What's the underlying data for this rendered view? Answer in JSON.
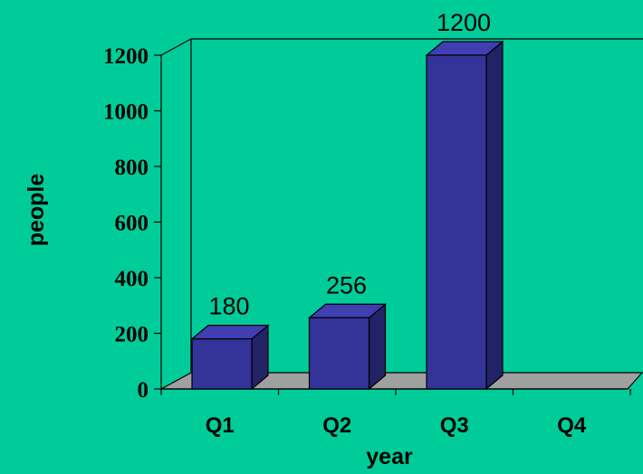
{
  "chart_data": {
    "type": "bar",
    "categories": [
      "Q1",
      "Q2",
      "Q3",
      "Q4"
    ],
    "values": [
      180,
      256,
      1200,
      null
    ],
    "data_labels": [
      "180",
      "256",
      "1200",
      ""
    ],
    "xlabel": "year",
    "ylabel": "people",
    "ylim": [
      0,
      1200
    ],
    "yticks": [
      "0",
      "200",
      "400",
      "600",
      "800",
      "1000",
      "1200"
    ],
    "style": "3d",
    "grid": false,
    "legend": "none"
  },
  "colors": {
    "background": "#00CC99",
    "bar_front": "#333399",
    "bar_top": "#3F3FB2",
    "bar_side": "#222266",
    "floor": "#A0A0A0"
  }
}
